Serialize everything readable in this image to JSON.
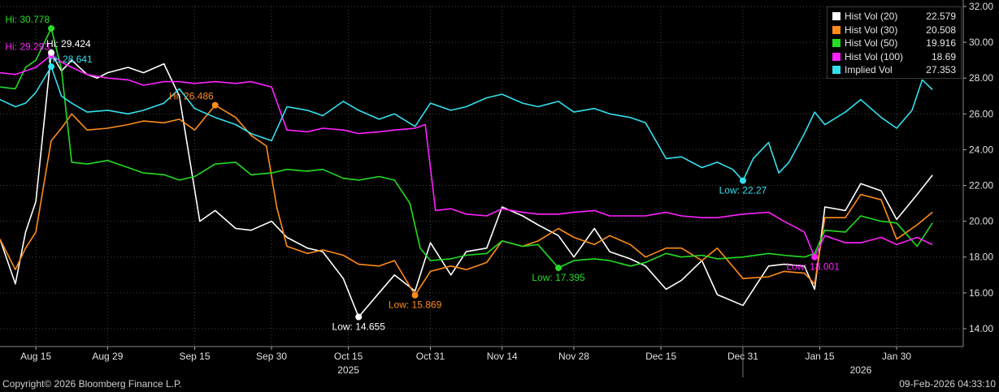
{
  "chart_data": {
    "type": "line",
    "x_tick_labels": [
      {
        "date": "2025-08-15",
        "label": "Aug 15"
      },
      {
        "date": "2025-08-29",
        "label": "Aug 29"
      },
      {
        "date": "2025-09-15",
        "label": "Sep 15"
      },
      {
        "date": "2025-09-30",
        "label": "Sep 30"
      },
      {
        "date": "2025-10-15",
        "label": "Oct 15"
      },
      {
        "date": "2025-10-31",
        "label": "Oct 31"
      },
      {
        "date": "2025-11-14",
        "label": "Nov 14"
      },
      {
        "date": "2025-11-28",
        "label": "Nov 28"
      },
      {
        "date": "2025-12-15",
        "label": "Dec 15"
      },
      {
        "date": "2025-12-31",
        "label": "Dec 31"
      },
      {
        "date": "2026-01-15",
        "label": "Jan 15"
      },
      {
        "date": "2026-01-30",
        "label": "Jan 30"
      }
    ],
    "year_labels": [
      {
        "date": "2025-10-15",
        "label": "2025"
      },
      {
        "date": "2026-01-23",
        "label": "2026"
      }
    ],
    "x_range": [
      "2025-08-08",
      "2026-02-12"
    ],
    "year_divider_date": "2025-12-31",
    "y_axis": {
      "position": "right",
      "ylim": [
        13,
        32
      ],
      "ticks": [
        14,
        16,
        18,
        20,
        22,
        24,
        26,
        28,
        30,
        32
      ],
      "tick_labels": [
        "14.00",
        "16.00",
        "18.00",
        "20.00",
        "22.00",
        "24.00",
        "26.00",
        "28.00",
        "30.00",
        "32.00"
      ]
    },
    "grid": true,
    "legend_position": "top-right",
    "series": [
      {
        "name": "Hist Vol (20)",
        "last_label": "22.579",
        "color": "#ffffff",
        "x": [
          "2025-08-08",
          "2025-08-11",
          "2025-08-13",
          "2025-08-15",
          "2025-08-18",
          "2025-08-20",
          "2025-08-22",
          "2025-08-25",
          "2025-08-27",
          "2025-08-29",
          "2025-09-02",
          "2025-09-05",
          "2025-09-09",
          "2025-09-12",
          "2025-09-16",
          "2025-09-19",
          "2025-09-23",
          "2025-09-26",
          "2025-09-30",
          "2025-10-03",
          "2025-10-07",
          "2025-10-10",
          "2025-10-14",
          "2025-10-17",
          "2025-10-21",
          "2025-10-24",
          "2025-10-28",
          "2025-10-31",
          "2025-11-04",
          "2025-11-07",
          "2025-11-11",
          "2025-11-14",
          "2025-11-18",
          "2025-11-21",
          "2025-11-25",
          "2025-11-28",
          "2025-12-02",
          "2025-12-05",
          "2025-12-09",
          "2025-12-12",
          "2025-12-16",
          "2025-12-19",
          "2025-12-23",
          "2025-12-26",
          "2025-12-31",
          "2026-01-05",
          "2026-01-08",
          "2026-01-12",
          "2026-01-14",
          "2026-01-16",
          "2026-01-20",
          "2026-01-23",
          "2026-01-27",
          "2026-01-30",
          "2026-02-03",
          "2026-02-06"
        ],
        "y": [
          19.0,
          16.5,
          19.4,
          21.1,
          29.4,
          28.4,
          29.0,
          28.2,
          28.0,
          28.3,
          28.6,
          28.3,
          28.8,
          27.0,
          20.0,
          20.6,
          19.6,
          19.5,
          20.0,
          19.1,
          18.5,
          18.3,
          16.8,
          14.655,
          16.0,
          17.0,
          16.1,
          18.8,
          17.0,
          18.3,
          18.5,
          20.8,
          20.3,
          19.8,
          19.2,
          18.0,
          19.6,
          18.3,
          17.9,
          17.5,
          16.2,
          16.7,
          17.8,
          15.9,
          15.3,
          17.5,
          17.6,
          17.5,
          16.2,
          20.8,
          20.6,
          22.1,
          21.7,
          20.1,
          21.5,
          22.579
        ]
      },
      {
        "name": "Hist Vol (30)",
        "last_label": "20.508",
        "color": "#ff8c1a",
        "x": [
          "2025-08-08",
          "2025-08-11",
          "2025-08-13",
          "2025-08-15",
          "2025-08-18",
          "2025-08-20",
          "2025-08-22",
          "2025-08-25",
          "2025-08-29",
          "2025-09-02",
          "2025-09-05",
          "2025-09-09",
          "2025-09-12",
          "2025-09-15",
          "2025-09-19",
          "2025-09-23",
          "2025-09-26",
          "2025-09-29",
          "2025-10-01",
          "2025-10-03",
          "2025-10-07",
          "2025-10-10",
          "2025-10-14",
          "2025-10-17",
          "2025-10-21",
          "2025-10-24",
          "2025-10-28",
          "2025-10-31",
          "2025-11-04",
          "2025-11-07",
          "2025-11-11",
          "2025-11-14",
          "2025-11-18",
          "2025-11-21",
          "2025-11-25",
          "2025-11-28",
          "2025-12-02",
          "2025-12-05",
          "2025-12-09",
          "2025-12-12",
          "2025-12-16",
          "2025-12-19",
          "2025-12-23",
          "2025-12-26",
          "2025-12-31",
          "2026-01-05",
          "2026-01-08",
          "2026-01-12",
          "2026-01-14",
          "2026-01-16",
          "2026-01-20",
          "2026-01-23",
          "2026-01-27",
          "2026-01-30",
          "2026-02-03",
          "2026-02-06"
        ],
        "y": [
          19.0,
          17.3,
          18.5,
          19.4,
          24.5,
          25.2,
          26.0,
          25.1,
          25.2,
          25.4,
          25.6,
          25.5,
          25.7,
          25.1,
          26.486,
          25.8,
          24.8,
          24.2,
          20.8,
          18.6,
          18.2,
          18.4,
          18.1,
          17.6,
          17.5,
          17.8,
          15.869,
          17.2,
          17.5,
          17.3,
          17.7,
          18.9,
          18.6,
          18.9,
          19.6,
          19.1,
          18.7,
          19.2,
          18.7,
          18.0,
          18.5,
          18.5,
          17.8,
          18.5,
          16.8,
          16.9,
          17.2,
          17.1,
          16.5,
          20.2,
          20.2,
          21.5,
          21.2,
          19.0,
          19.8,
          20.508
        ]
      },
      {
        "name": "Hist Vol (50)",
        "last_label": "19.916",
        "color": "#22dd22",
        "x": [
          "2025-08-08",
          "2025-08-11",
          "2025-08-13",
          "2025-08-15",
          "2025-08-18",
          "2025-08-20",
          "2025-08-22",
          "2025-08-25",
          "2025-08-29",
          "2025-09-02",
          "2025-09-05",
          "2025-09-09",
          "2025-09-12",
          "2025-09-15",
          "2025-09-19",
          "2025-09-23",
          "2025-09-26",
          "2025-09-30",
          "2025-10-03",
          "2025-10-07",
          "2025-10-10",
          "2025-10-14",
          "2025-10-17",
          "2025-10-21",
          "2025-10-24",
          "2025-10-27",
          "2025-10-29",
          "2025-10-31",
          "2025-11-04",
          "2025-11-07",
          "2025-11-11",
          "2025-11-14",
          "2025-11-18",
          "2025-11-21",
          "2025-11-25",
          "2025-11-28",
          "2025-12-02",
          "2025-12-05",
          "2025-12-09",
          "2025-12-12",
          "2025-12-16",
          "2025-12-19",
          "2025-12-23",
          "2025-12-26",
          "2025-12-31",
          "2026-01-05",
          "2026-01-08",
          "2026-01-12",
          "2026-01-14",
          "2026-01-16",
          "2026-01-20",
          "2026-01-23",
          "2026-01-27",
          "2026-01-30",
          "2026-02-03",
          "2026-02-06"
        ],
        "y": [
          27.5,
          27.4,
          28.6,
          29.0,
          30.778,
          28.5,
          23.3,
          23.2,
          23.4,
          23.0,
          22.7,
          22.6,
          22.3,
          22.5,
          23.2,
          23.3,
          22.6,
          22.7,
          22.9,
          22.8,
          22.9,
          22.4,
          22.3,
          22.5,
          22.3,
          21.0,
          18.5,
          17.8,
          17.9,
          18.1,
          18.2,
          18.9,
          18.6,
          18.7,
          17.4,
          17.8,
          17.9,
          17.8,
          17.5,
          17.7,
          18.2,
          18.0,
          18.1,
          17.9,
          18.0,
          18.2,
          18.1,
          18.0,
          18.2,
          19.5,
          19.4,
          20.3,
          20.0,
          19.9,
          18.6,
          19.916
        ]
      },
      {
        "name": "Hist Vol (100)",
        "last_label": "18.69",
        "color": "#ff22ff",
        "x": [
          "2025-08-08",
          "2025-08-11",
          "2025-08-13",
          "2025-08-15",
          "2025-08-18",
          "2025-08-20",
          "2025-08-22",
          "2025-08-25",
          "2025-08-29",
          "2025-09-02",
          "2025-09-05",
          "2025-09-09",
          "2025-09-12",
          "2025-09-15",
          "2025-09-19",
          "2025-09-23",
          "2025-09-26",
          "2025-09-30",
          "2025-10-03",
          "2025-10-07",
          "2025-10-10",
          "2025-10-14",
          "2025-10-17",
          "2025-10-21",
          "2025-10-24",
          "2025-10-28",
          "2025-10-30",
          "2025-11-01",
          "2025-11-04",
          "2025-11-07",
          "2025-11-11",
          "2025-11-14",
          "2025-11-18",
          "2025-11-21",
          "2025-11-25",
          "2025-11-28",
          "2025-12-02",
          "2025-12-05",
          "2025-12-09",
          "2025-12-12",
          "2025-12-16",
          "2025-12-19",
          "2025-12-23",
          "2025-12-26",
          "2025-12-31",
          "2026-01-05",
          "2026-01-08",
          "2026-01-12",
          "2026-01-14",
          "2026-01-16",
          "2026-01-20",
          "2026-01-23",
          "2026-01-27",
          "2026-01-30",
          "2026-02-03",
          "2026-02-06"
        ],
        "y": [
          28.3,
          28.2,
          28.4,
          28.6,
          29.293,
          28.9,
          28.6,
          28.2,
          28.0,
          27.9,
          27.6,
          27.8,
          27.8,
          27.7,
          27.8,
          27.7,
          27.8,
          27.5,
          25.1,
          25.0,
          25.2,
          25.1,
          24.9,
          25.0,
          25.1,
          25.2,
          25.4,
          20.6,
          20.7,
          20.4,
          20.3,
          20.7,
          20.5,
          20.4,
          20.4,
          20.5,
          20.6,
          20.3,
          20.3,
          20.3,
          20.5,
          20.3,
          20.2,
          20.2,
          20.4,
          20.5,
          20.0,
          19.4,
          18.001,
          19.2,
          18.8,
          18.8,
          19.1,
          18.7,
          19.1,
          18.69
        ]
      },
      {
        "name": "Implied Vol",
        "last_label": "27.353",
        "color": "#33e0ee",
        "x": [
          "2025-08-08",
          "2025-08-11",
          "2025-08-13",
          "2025-08-15",
          "2025-08-18",
          "2025-08-20",
          "2025-08-22",
          "2025-08-25",
          "2025-08-29",
          "2025-09-02",
          "2025-09-05",
          "2025-09-09",
          "2025-09-12",
          "2025-09-15",
          "2025-09-19",
          "2025-09-23",
          "2025-09-26",
          "2025-09-30",
          "2025-10-03",
          "2025-10-07",
          "2025-10-10",
          "2025-10-14",
          "2025-10-17",
          "2025-10-21",
          "2025-10-24",
          "2025-10-28",
          "2025-10-31",
          "2025-11-04",
          "2025-11-07",
          "2025-11-11",
          "2025-11-14",
          "2025-11-18",
          "2025-11-21",
          "2025-11-25",
          "2025-11-28",
          "2025-12-02",
          "2025-12-05",
          "2025-12-09",
          "2025-12-12",
          "2025-12-16",
          "2025-12-19",
          "2025-12-23",
          "2025-12-26",
          "2025-12-29",
          "2025-12-31",
          "2026-01-02",
          "2026-01-05",
          "2026-01-07",
          "2026-01-09",
          "2026-01-12",
          "2026-01-14",
          "2026-01-16",
          "2026-01-20",
          "2026-01-23",
          "2026-01-27",
          "2026-01-30",
          "2026-02-02",
          "2026-02-04",
          "2026-02-06"
        ],
        "y": [
          26.8,
          26.4,
          26.6,
          27.2,
          28.641,
          27.0,
          26.6,
          26.1,
          26.2,
          26.0,
          26.2,
          26.6,
          27.4,
          26.3,
          25.8,
          25.4,
          24.9,
          24.5,
          26.4,
          26.2,
          25.9,
          26.7,
          26.2,
          25.7,
          26.0,
          25.3,
          26.6,
          26.2,
          26.4,
          26.9,
          27.1,
          26.6,
          26.4,
          26.7,
          26.1,
          26.3,
          26.0,
          25.8,
          25.5,
          23.5,
          23.6,
          23.0,
          23.3,
          22.9,
          22.27,
          23.5,
          24.4,
          22.7,
          23.3,
          24.9,
          26.1,
          25.4,
          26.1,
          26.8,
          25.8,
          25.2,
          26.2,
          27.9,
          27.353
        ]
      }
    ],
    "annotations": [
      {
        "text": "Hi: 30.778",
        "date": "2025-08-18",
        "value": 30.778,
        "color": "#22dd22",
        "pos": "above-left"
      },
      {
        "text": "Hi: 29.293",
        "date": "2025-08-18",
        "value": 29.293,
        "color": "#ff22ff",
        "pos": "left"
      },
      {
        "text": "Hi: 29.424",
        "date": "2025-08-18",
        "value": 29.424,
        "color": "#ffffff",
        "pos": "above-right"
      },
      {
        "text": "Hi: 28.641",
        "date": "2025-08-18",
        "value": 28.641,
        "color": "#33e0ee",
        "pos": "right"
      },
      {
        "text": "Hi: 26.486",
        "date": "2025-09-19",
        "value": 26.486,
        "color": "#ff8c1a",
        "pos": "above-left"
      },
      {
        "text": "Low: 14.655",
        "date": "2025-10-17",
        "value": 14.655,
        "color": "#ffffff",
        "pos": "below"
      },
      {
        "text": "Low: 15.869",
        "date": "2025-10-28",
        "value": 15.869,
        "color": "#ff8c1a",
        "pos": "below"
      },
      {
        "text": "Low: 17.395",
        "date": "2025-11-25",
        "value": 17.395,
        "color": "#22dd22",
        "pos": "below"
      },
      {
        "text": "Low: 22.27",
        "date": "2025-12-31",
        "value": 22.27,
        "color": "#33e0ee",
        "pos": "below"
      },
      {
        "text": "Low: 18.001",
        "date": "2026-01-14",
        "value": 18.001,
        "color": "#ff22ff",
        "pos": "below-left"
      }
    ]
  },
  "footer": {
    "copyright": "Copyright© 2026 Bloomberg Finance L.P.",
    "timestamp": "09-Feb-2026 04:33:10"
  }
}
